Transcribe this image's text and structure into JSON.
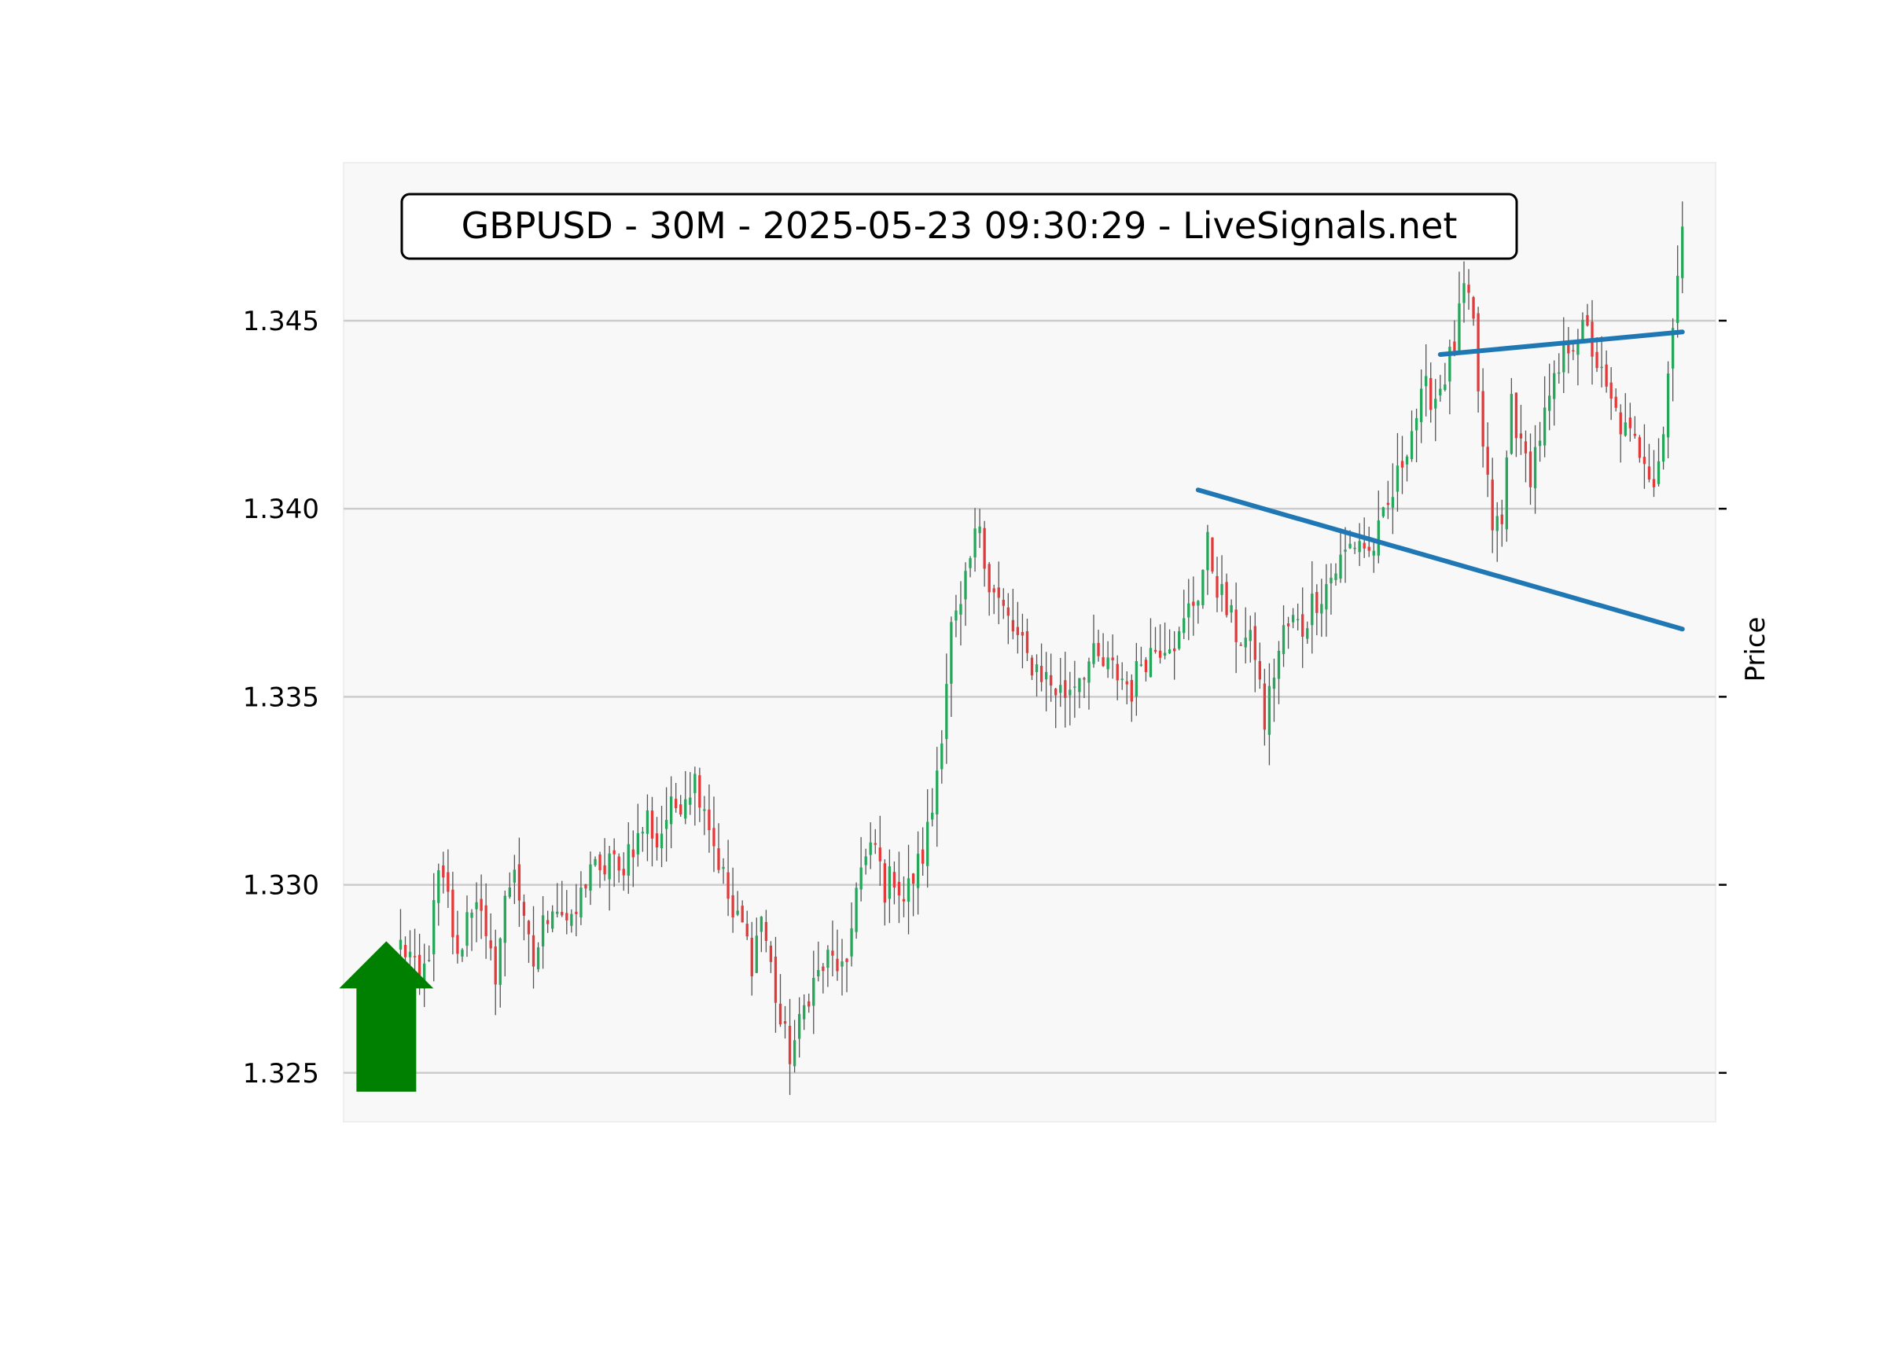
{
  "chart_data": {
    "type": "candlestick",
    "title": "GBPUSD - 30M - 2025-05-23 09:30:29 - LiveSignals.net",
    "ylabel": "Price",
    "xlabel": "",
    "ylim": [
      1.3237,
      1.3492
    ],
    "y_ticks": [
      1.325,
      1.33,
      1.335,
      1.34,
      1.345
    ],
    "y_tick_labels": [
      "1.325",
      "1.330",
      "1.335",
      "1.340",
      "1.345"
    ],
    "grid": "horizontal",
    "y_axis_side": "right",
    "x_range": [
      -12,
      277
    ],
    "colors": {
      "up": "#26a65b",
      "down": "#e23a3a",
      "wick": "#555555",
      "trendline": "#1f77b4",
      "signal_arrow": "#008000",
      "plot_background": "#f8f8f8",
      "grid": "#cccccc"
    },
    "signal": {
      "direction": "up",
      "icon": "up-arrow-icon",
      "x": -3,
      "y_base": 1.3245,
      "y_tip": 1.3285
    },
    "trendlines": [
      {
        "name": "upper",
        "x0": 219,
        "y0": 1.3441,
        "x1": 270,
        "y1": 1.3447
      },
      {
        "name": "lower",
        "x0": 168,
        "y0": 1.3405,
        "x1": 270,
        "y1": 1.3368
      }
    ],
    "anchors": [
      [
        0,
        1.3284
      ],
      [
        2,
        1.3281
      ],
      [
        4,
        1.3272
      ],
      [
        6,
        1.3283
      ],
      [
        8,
        1.3302
      ],
      [
        10,
        1.3296
      ],
      [
        12,
        1.3279
      ],
      [
        14,
        1.3292
      ],
      [
        16,
        1.3298
      ],
      [
        18,
        1.3283
      ],
      [
        20,
        1.3277
      ],
      [
        22,
        1.3295
      ],
      [
        24,
        1.3306
      ],
      [
        26,
        1.3288
      ],
      [
        28,
        1.3279
      ],
      [
        30,
        1.3289
      ],
      [
        32,
        1.3296
      ],
      [
        34,
        1.3293
      ],
      [
        36,
        1.3288
      ],
      [
        38,
        1.3297
      ],
      [
        40,
        1.3306
      ],
      [
        42,
        1.3301
      ],
      [
        44,
        1.3308
      ],
      [
        46,
        1.3302
      ],
      [
        48,
        1.331
      ],
      [
        50,
        1.3312
      ],
      [
        52,
        1.3318
      ],
      [
        54,
        1.3311
      ],
      [
        56,
        1.3318
      ],
      [
        58,
        1.3321
      ],
      [
        60,
        1.3325
      ],
      [
        62,
        1.3328
      ],
      [
        64,
        1.3322
      ],
      [
        66,
        1.3311
      ],
      [
        68,
        1.3302
      ],
      [
        70,
        1.3291
      ],
      [
        72,
        1.3289
      ],
      [
        74,
        1.328
      ],
      [
        76,
        1.3292
      ],
      [
        78,
        1.3278
      ],
      [
        80,
        1.3263
      ],
      [
        82,
        1.3255
      ],
      [
        84,
        1.3262
      ],
      [
        86,
        1.3272
      ],
      [
        88,
        1.3276
      ],
      [
        90,
        1.328
      ],
      [
        92,
        1.3279
      ],
      [
        94,
        1.3275
      ],
      [
        96,
        1.3302
      ],
      [
        98,
        1.3306
      ],
      [
        100,
        1.331
      ],
      [
        102,
        1.3299
      ],
      [
        104,
        1.3303
      ],
      [
        106,
        1.3296
      ],
      [
        108,
        1.3302
      ],
      [
        110,
        1.3308
      ],
      [
        112,
        1.332
      ],
      [
        114,
        1.3342
      ],
      [
        116,
        1.3368
      ],
      [
        118,
        1.3372
      ],
      [
        120,
        1.3386
      ],
      [
        122,
        1.3397
      ],
      [
        124,
        1.338
      ],
      [
        126,
        1.3375
      ],
      [
        128,
        1.337
      ],
      [
        130,
        1.3365
      ],
      [
        132,
        1.336
      ],
      [
        134,
        1.3358
      ],
      [
        136,
        1.3355
      ],
      [
        138,
        1.3352
      ],
      [
        140,
        1.3351
      ],
      [
        142,
        1.3355
      ],
      [
        144,
        1.3358
      ],
      [
        146,
        1.336
      ],
      [
        148,
        1.3358
      ],
      [
        150,
        1.3357
      ],
      [
        152,
        1.3355
      ],
      [
        154,
        1.3352
      ],
      [
        156,
        1.336
      ],
      [
        158,
        1.3362
      ],
      [
        160,
        1.3364
      ],
      [
        162,
        1.3366
      ],
      [
        164,
        1.3365
      ],
      [
        166,
        1.3373
      ],
      [
        168,
        1.3378
      ],
      [
        170,
        1.339
      ],
      [
        172,
        1.338
      ],
      [
        174,
        1.3373
      ],
      [
        176,
        1.3367
      ],
      [
        178,
        1.3365
      ],
      [
        180,
        1.3362
      ],
      [
        182,
        1.3343
      ],
      [
        184,
        1.3357
      ],
      [
        186,
        1.3367
      ],
      [
        188,
        1.337
      ],
      [
        190,
        1.3368
      ],
      [
        192,
        1.3375
      ],
      [
        194,
        1.3378
      ],
      [
        196,
        1.3382
      ],
      [
        198,
        1.3386
      ],
      [
        200,
        1.339
      ],
      [
        202,
        1.3392
      ],
      [
        204,
        1.3388
      ],
      [
        206,
        1.3393
      ],
      [
        208,
        1.34
      ],
      [
        210,
        1.3408
      ],
      [
        212,
        1.3418
      ],
      [
        214,
        1.3425
      ],
      [
        216,
        1.3431
      ],
      [
        218,
        1.343
      ],
      [
        220,
        1.3436
      ],
      [
        222,
        1.3443
      ],
      [
        224,
        1.3458
      ],
      [
        226,
        1.3448
      ],
      [
        228,
        1.3415
      ],
      [
        230,
        1.3396
      ],
      [
        232,
        1.3395
      ],
      [
        234,
        1.343
      ],
      [
        236,
        1.3415
      ],
      [
        238,
        1.341
      ],
      [
        240,
        1.342
      ],
      [
        242,
        1.3428
      ],
      [
        244,
        1.3436
      ],
      [
        246,
        1.3444
      ],
      [
        248,
        1.3447
      ],
      [
        250,
        1.3446
      ],
      [
        252,
        1.3439
      ],
      [
        254,
        1.343
      ],
      [
        256,
        1.3425
      ],
      [
        258,
        1.342
      ],
      [
        260,
        1.3417
      ],
      [
        262,
        1.3415
      ],
      [
        264,
        1.3408
      ],
      [
        266,
        1.342
      ],
      [
        268,
        1.3452
      ],
      [
        270,
        1.3475
      ]
    ],
    "note_series": "Candle OHLC values are generated between these anchor closes with small seeded noise."
  }
}
